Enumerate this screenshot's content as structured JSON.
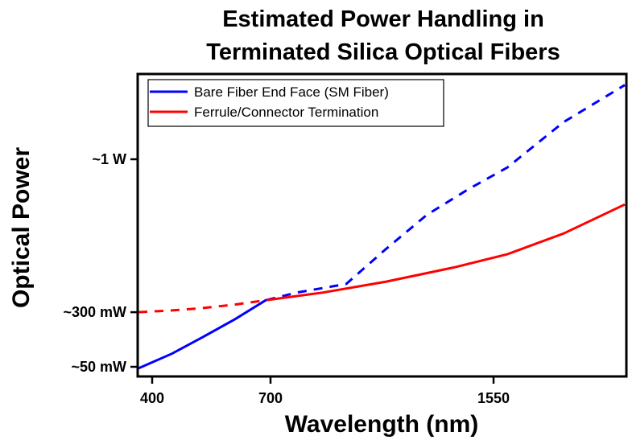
{
  "chart_data": {
    "type": "line",
    "title": [
      "Estimated Power Handling in",
      "Terminated Silica Optical Fibers"
    ],
    "xlabel": "Wavelength (nm)",
    "ylabel": "Optical Power",
    "x_ticks": [
      {
        "value": 400,
        "label": "400"
      },
      {
        "value": 700,
        "label": "700"
      },
      {
        "value": 1550,
        "label": "1550"
      }
    ],
    "y_ticks": [
      {
        "value": 50,
        "label": "~50 mW"
      },
      {
        "value": 300,
        "label": "~300 mW"
      },
      {
        "value": 1000,
        "label": "~1 W"
      }
    ],
    "y_units": "mW",
    "x_units": "nm",
    "xlim": [
      365,
      2050
    ],
    "grid": false,
    "legend": {
      "placement": "top-left",
      "entries": [
        {
          "label": "Bare Fiber End Face (SM Fiber)",
          "color": "#0000ff"
        },
        {
          "label": "Ferrule/Connector Termination",
          "color": "#ff0000"
        }
      ]
    },
    "series": [
      {
        "name": "Bare Fiber End Face (SM Fiber)",
        "color": "#0000ff",
        "solid_until_nm": 690,
        "style_after": "dashed",
        "points": [
          [
            365,
            43
          ],
          [
            450,
            110
          ],
          [
            524,
            182
          ],
          [
            610,
            268
          ],
          [
            688,
            355
          ],
          [
            800,
            390
          ],
          [
            988,
            429
          ],
          [
            1141,
            590
          ],
          [
            1295,
            745
          ],
          [
            1450,
            860
          ],
          [
            1602,
            962
          ],
          [
            1817,
            1170
          ],
          [
            2050,
            1340
          ]
        ]
      },
      {
        "name": "Ferrule/Connector Termination",
        "color": "#ff0000",
        "dashed_until_nm": 690,
        "style_after": "solid",
        "points": [
          [
            365,
            300
          ],
          [
            450,
            308
          ],
          [
            524,
            318
          ],
          [
            610,
            335
          ],
          [
            688,
            355
          ],
          [
            900,
            390
          ],
          [
            1141,
            440
          ],
          [
            1400,
            505
          ],
          [
            1602,
            565
          ],
          [
            1817,
            660
          ],
          [
            2050,
            793
          ]
        ]
      }
    ]
  }
}
